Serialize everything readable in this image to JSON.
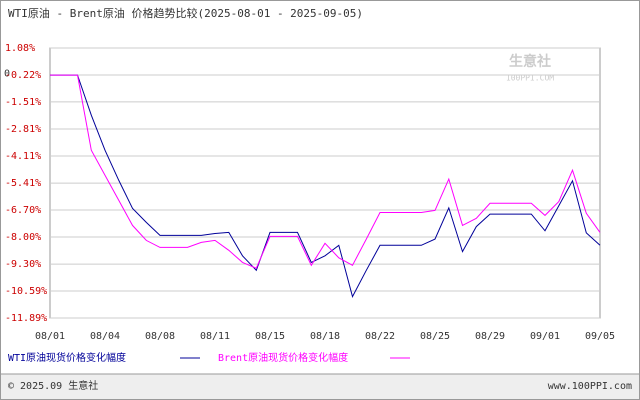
{
  "chart_data": {
    "type": "line",
    "title": "WTI原油 - Brent原油 价格趋势比较(2025-08-01 - 2025-09-05)",
    "categories": [
      "08/01",
      null,
      null,
      null,
      "08/04",
      null,
      null,
      null,
      "08/08",
      null,
      null,
      null,
      "08/11",
      null,
      null,
      null,
      "08/15",
      null,
      null,
      null,
      "08/18",
      null,
      null,
      null,
      "08/22",
      null,
      null,
      null,
      "08/25",
      null,
      null,
      null,
      "08/29",
      null,
      null,
      null,
      "09/01",
      null,
      null,
      null,
      "09/05"
    ],
    "series": [
      {
        "name": "WTI原油现货价格变化幅度",
        "color": "#000099",
        "values": [
          -0.22,
          -0.22,
          -0.22,
          -2.15,
          -3.83,
          -5.28,
          -6.62,
          -7.3,
          -7.92,
          -7.92,
          -7.92,
          -7.92,
          -7.83,
          -7.78,
          -8.9,
          -9.6,
          -7.78,
          -7.78,
          -7.78,
          -9.22,
          -8.9,
          -8.4,
          -10.86,
          -9.6,
          -8.4,
          -8.4,
          -8.4,
          -8.4,
          -8.1,
          -6.6,
          -8.7,
          -7.5,
          -6.9,
          -6.9,
          -6.9,
          -6.9,
          -7.7,
          -6.5,
          -5.3,
          -7.8,
          -8.4
        ]
      },
      {
        "name": "Brent原油现货价格变化幅度",
        "color": "#ff00ff",
        "values": [
          -0.22,
          -0.22,
          -0.22,
          -3.83,
          -5.03,
          -6.24,
          -7.44,
          -8.16,
          -8.5,
          -8.5,
          -8.5,
          -8.26,
          -8.16,
          -8.64,
          -9.22,
          -9.5,
          -7.97,
          -7.97,
          -7.97,
          -9.36,
          -8.3,
          -9.0,
          -9.36,
          -8.1,
          -6.82,
          -6.82,
          -6.82,
          -6.82,
          -6.72,
          -5.22,
          -7.44,
          -7.1,
          -6.38,
          -6.38,
          -6.38,
          -6.38,
          -6.96,
          -6.3,
          -4.79,
          -6.86,
          -7.78
        ]
      }
    ],
    "ylim": [
      -11.89,
      1.08
    ],
    "yticks": [
      {
        "value": 1.08,
        "label": "1.08%"
      },
      0,
      {
        "value": -0.22,
        "label": "-0.22%"
      },
      {
        "value": -1.51,
        "label": "-1.51%"
      },
      {
        "value": -2.81,
        "label": "-2.81%"
      },
      {
        "value": -4.11,
        "label": "-4.11%"
      },
      {
        "value": -5.41,
        "label": "-5.41%"
      },
      {
        "value": -6.7,
        "label": "-6.70%"
      },
      {
        "value": -8.0,
        "label": "-8.00%"
      },
      {
        "value": -9.3,
        "label": "-9.30%"
      },
      {
        "value": -10.59,
        "label": "-10.59%"
      },
      {
        "value": -11.89,
        "label": "-11.89%"
      }
    ],
    "grid": true,
    "watermark": [
      "生意社",
      "100PPI.COM"
    ],
    "footer_left": "© 2025.09 生意社",
    "footer_right": "www.100PPI.com"
  }
}
